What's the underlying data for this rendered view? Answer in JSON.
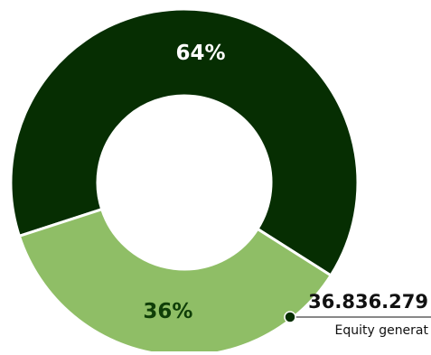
{
  "chart_data": {
    "type": "pie",
    "variant": "donut",
    "slices": [
      {
        "label": "64%",
        "value": 64,
        "color": "#062e02",
        "label_color": "#ffffff"
      },
      {
        "label": "36%",
        "value": 36,
        "color": "#8fbe66",
        "label_color": "#0f3e08"
      }
    ],
    "callout": {
      "value": "36.836.279",
      "caption": "Equity generat"
    }
  }
}
